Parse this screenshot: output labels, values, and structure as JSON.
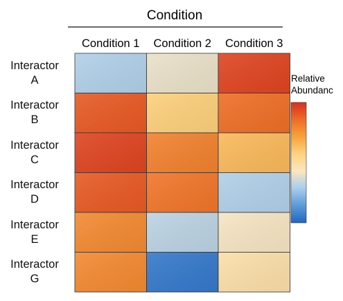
{
  "chart_data": {
    "type": "heatmap",
    "title": "Condition",
    "columns": [
      "Condition 1",
      "Condition 2",
      "Condition 3"
    ],
    "rows": [
      {
        "line1": "Interactor",
        "line2": "A"
      },
      {
        "line1": "Interactor",
        "line2": "B"
      },
      {
        "line1": "Interactor",
        "line2": "C"
      },
      {
        "line1": "Interactor",
        "line2": "D"
      },
      {
        "line1": "Interactor",
        "line2": "E"
      },
      {
        "line1": "Interactor",
        "line2": "G"
      }
    ],
    "values": [
      [
        0.3,
        0.4,
        0.95
      ],
      [
        0.9,
        0.58,
        0.85
      ],
      [
        0.95,
        0.8,
        0.65
      ],
      [
        0.9,
        0.83,
        0.3
      ],
      [
        0.78,
        0.32,
        0.42
      ],
      [
        0.78,
        0.05,
        0.48
      ]
    ],
    "value_range": [
      0,
      1
    ],
    "colorbar": {
      "label_line1": "Relative",
      "label_line2": "Abundanc",
      "colormap": [
        "#2166c4",
        "#5a9bd8",
        "#a8cdee",
        "#fbe6c0",
        "#fdd380",
        "#f7a33c",
        "#ef6c26",
        "#d7301f"
      ]
    }
  }
}
